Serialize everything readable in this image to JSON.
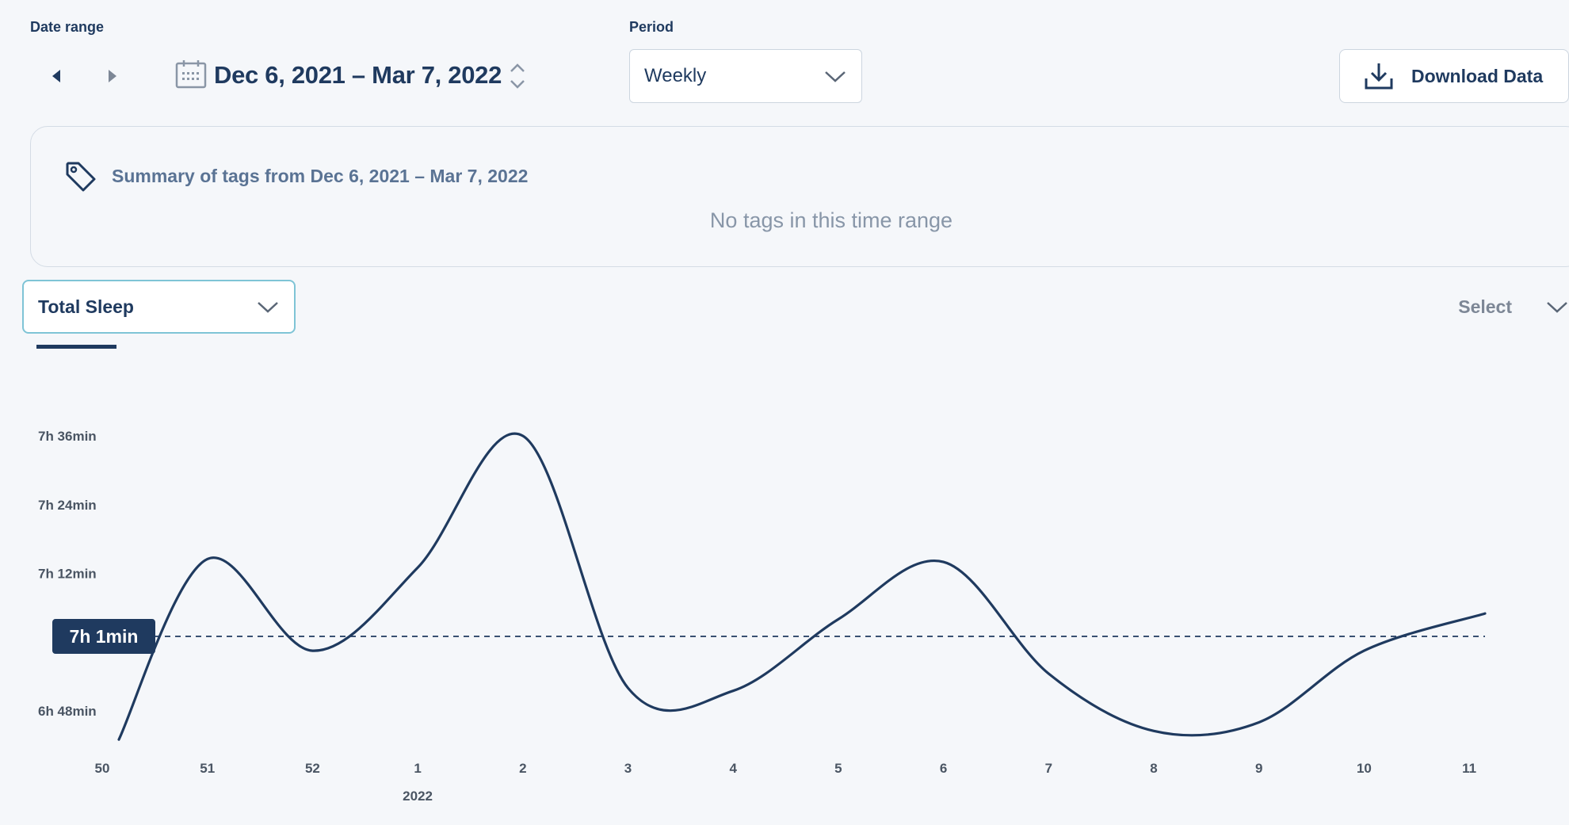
{
  "header": {
    "date_range_label": "Date range",
    "date_range_value": "Dec 6, 2021 – Mar 7, 2022",
    "period_label": "Period",
    "period_value": "Weekly",
    "download_label": "Download Data"
  },
  "summary": {
    "title": "Summary of tags from Dec 6, 2021 – Mar 7, 2022",
    "empty_text": "No tags in this time range"
  },
  "controls": {
    "metric_value": "Total Sleep",
    "secondary_placeholder": "Select"
  },
  "colors": {
    "primary": "#1f3a5f",
    "accent_border": "#7fc4d6",
    "background": "#f5f7fa"
  },
  "chart_data": {
    "type": "line",
    "categories": [
      "50",
      "51",
      "52",
      "1",
      "2",
      "3",
      "4",
      "5",
      "6",
      "7",
      "8",
      "9",
      "10",
      "11"
    ],
    "x_sublabel": {
      "under": "1",
      "text": "2022"
    },
    "y_tick_labels": [
      "6h 48min",
      "7h 12min",
      "7h 24min",
      "7h 36min"
    ],
    "y_tick_minutes": [
      408,
      432,
      444,
      456
    ],
    "ylim_minutes": [
      408,
      456
    ],
    "series": [
      {
        "values_minutes": [
          403,
          434.5,
          418.5,
          433,
          456,
          412,
          411.5,
          424,
          434,
          414.5,
          404.5,
          406,
          418.5,
          425
        ]
      }
    ],
    "average": {
      "label": "7h 1min",
      "minutes": 421
    },
    "grid": false
  }
}
